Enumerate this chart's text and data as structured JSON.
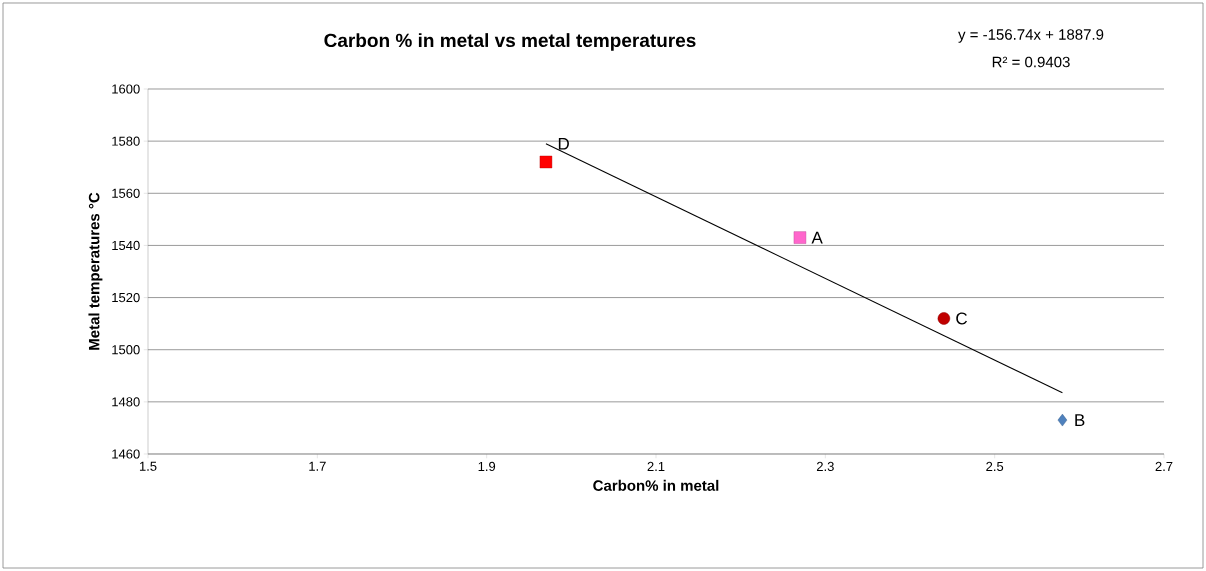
{
  "chart_data": {
    "type": "scatter",
    "title": "Carbon % in metal vs metal temperatures",
    "xlabel": "Carbon% in metal",
    "ylabel": "Metal temperatures °C",
    "series": [
      {
        "color": "#ff0000",
        "marker": "square",
        "x": [
          1.97
        ],
        "values": [
          1572
        ]
      },
      {
        "color": "#ff66cc",
        "marker": "square",
        "x": [
          2.27
        ],
        "values": [
          1543
        ]
      },
      {
        "color": "#c00000",
        "marker": "circle",
        "x": [
          2.44
        ],
        "values": [
          1512
        ]
      },
      {
        "color": "#4f81bd",
        "marker": "diamond",
        "x": [
          2.58
        ],
        "values": [
          1473
        ]
      },
      {
        "type": "line",
        "color": "#000000",
        "marker": "none",
        "x": [
          1.97,
          2.58
        ],
        "values": [
          1579,
          1483.5
        ]
      }
    ],
    "annotations": [
      {
        "text": "D",
        "x": 1.97,
        "y": 1579
      },
      {
        "text": "A",
        "x": 2.27,
        "y": 1543
      },
      {
        "text": "C",
        "x": 2.44,
        "y": 1512
      },
      {
        "text": "B",
        "x": 2.58,
        "y": 1473
      },
      "y = -156.74x + 1887.9",
      "R² = 0.9403"
    ],
    "xlim": [
      1.5,
      2.7
    ],
    "ylim": [
      1460,
      1600
    ],
    "xticks": [
      1.5,
      1.7,
      1.9,
      2.1,
      2.3,
      2.5,
      2.7
    ],
    "yticks": [
      1460,
      1480,
      1500,
      1520,
      1540,
      1560,
      1580,
      1600
    ],
    "grid": "y"
  }
}
